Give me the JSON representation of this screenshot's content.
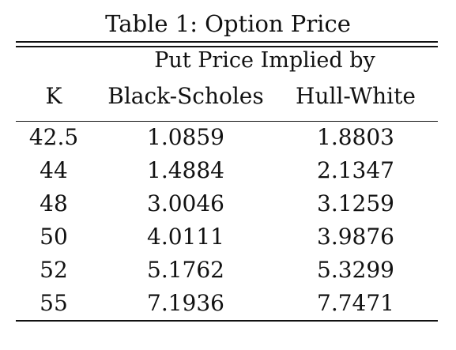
{
  "caption": "Table 1: Option Price",
  "header": {
    "group_label": "Put Price Implied by",
    "col_k": "K",
    "col_bs": "Black-Scholes",
    "col_hw": "Hull-White"
  },
  "rows": [
    {
      "k": "42.5",
      "bs": "1.0859",
      "hw": "1.8803"
    },
    {
      "k": "44",
      "bs": "1.4884",
      "hw": "2.1347"
    },
    {
      "k": "48",
      "bs": "3.0046",
      "hw": "3.1259"
    },
    {
      "k": "50",
      "bs": "4.0111",
      "hw": "3.9876"
    },
    {
      "k": "52",
      "bs": "5.1762",
      "hw": "5.3299"
    },
    {
      "k": "55",
      "bs": "7.1936",
      "hw": "7.7471"
    }
  ]
}
